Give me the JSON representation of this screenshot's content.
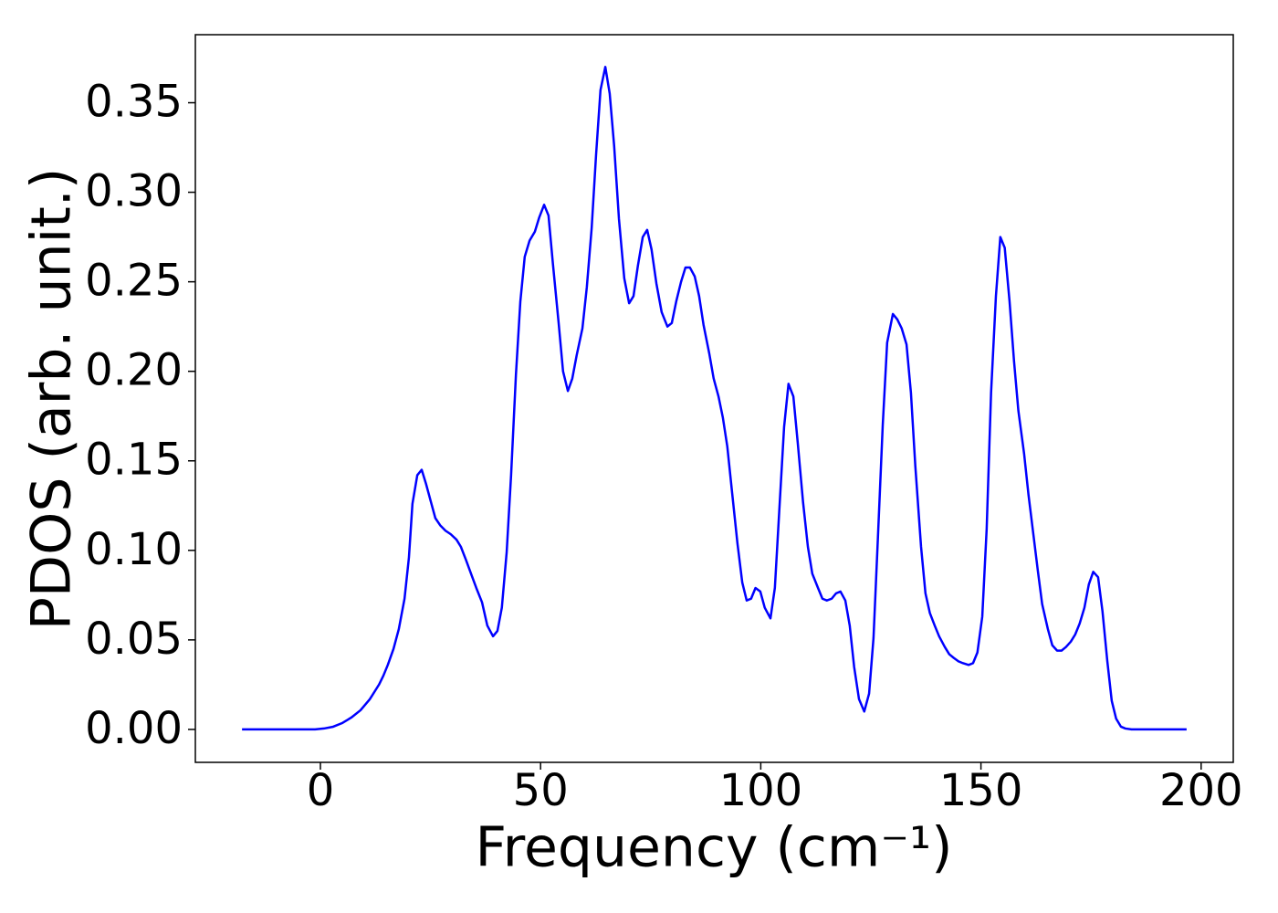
{
  "chart_data": {
    "type": "line",
    "xlabel": "Frequency (cm⁻¹)",
    "ylabel": "PDOS (arb. unit.)",
    "color": "#0000ff",
    "xlim": [
      -28.4,
      207.3
    ],
    "ylim": [
      -0.0184,
      0.388
    ],
    "xticks": [
      0,
      50,
      100,
      150,
      200
    ],
    "yticks": [
      {
        "value": 0,
        "label": "0.00"
      },
      0.05,
      {
        "value": 0.1,
        "label": "0.10"
      },
      0.15,
      {
        "value": 0.2,
        "label": "0.20"
      },
      0.25,
      {
        "value": 0.3,
        "label": "0.30"
      },
      0.35
    ],
    "x": [
      -17.8,
      -1.2,
      0.8,
      2.9,
      5.0,
      7.0,
      9.1,
      11.2,
      13.3,
      14.3,
      15.3,
      16.6,
      17.8,
      19.1,
      20.1,
      20.9,
      22.0,
      23.0,
      24.0,
      25.1,
      26.1,
      27.2,
      28.4,
      29.6,
      30.9,
      31.9,
      33.0,
      34.2,
      35.4,
      36.7,
      37.9,
      39.2,
      40.2,
      41.2,
      42.3,
      43.3,
      44.4,
      45.4,
      46.4,
      47.5,
      48.7,
      49.7,
      50.8,
      51.8,
      52.8,
      54.1,
      55.1,
      56.2,
      57.2,
      58.2,
      59.5,
      60.5,
      61.6,
      62.6,
      63.6,
      64.7,
      65.7,
      66.7,
      67.8,
      69.0,
      70.1,
      71.1,
      72.1,
      73.2,
      74.2,
      75.2,
      76.3,
      77.5,
      78.8,
      79.8,
      80.8,
      81.9,
      82.9,
      83.9,
      85.0,
      86.0,
      87.0,
      88.3,
      89.3,
      90.4,
      91.4,
      92.4,
      93.5,
      94.7,
      95.8,
      96.8,
      97.8,
      98.8,
      99.9,
      100.9,
      102.2,
      103.2,
      104.2,
      105.3,
      106.3,
      107.4,
      108.4,
      109.6,
      110.7,
      111.7,
      113.0,
      114.0,
      115.0,
      116.1,
      117.1,
      118.1,
      119.2,
      120.2,
      121.2,
      122.3,
      123.5,
      124.6,
      125.6,
      126.6,
      127.7,
      128.7,
      130.0,
      131.0,
      132.0,
      133.1,
      134.1,
      135.1,
      136.4,
      137.4,
      138.4,
      139.5,
      140.5,
      141.8,
      142.8,
      143.8,
      144.9,
      145.9,
      147.2,
      148.2,
      149.2,
      150.3,
      151.3,
      152.3,
      153.4,
      154.4,
      155.4,
      156.5,
      157.5,
      158.5,
      159.8,
      160.8,
      161.9,
      162.9,
      163.9,
      165.2,
      166.2,
      167.3,
      168.3,
      169.3,
      170.4,
      171.4,
      172.4,
      173.5,
      174.5,
      175.5,
      176.6,
      177.6,
      178.7,
      179.7,
      180.7,
      181.8,
      182.8,
      184.2,
      196.7
    ],
    "values": [
      0,
      0,
      0.0005,
      0.0015,
      0.0036,
      0.0066,
      0.0107,
      0.0168,
      0.025,
      0.03,
      0.036,
      0.045,
      0.056,
      0.073,
      0.096,
      0.126,
      0.142,
      0.145,
      0.137,
      0.127,
      0.118,
      0.114,
      0.111,
      0.109,
      0.106,
      0.102,
      0.095,
      0.087,
      0.079,
      0.071,
      0.058,
      0.052,
      0.055,
      0.068,
      0.099,
      0.142,
      0.198,
      0.239,
      0.264,
      0.273,
      0.278,
      0.286,
      0.293,
      0.287,
      0.26,
      0.227,
      0.2,
      0.189,
      0.196,
      0.209,
      0.224,
      0.247,
      0.28,
      0.321,
      0.357,
      0.37,
      0.355,
      0.326,
      0.285,
      0.252,
      0.238,
      0.242,
      0.259,
      0.275,
      0.279,
      0.268,
      0.249,
      0.233,
      0.225,
      0.227,
      0.239,
      0.25,
      0.258,
      0.258,
      0.253,
      0.242,
      0.226,
      0.21,
      0.196,
      0.186,
      0.174,
      0.158,
      0.132,
      0.104,
      0.082,
      0.072,
      0.073,
      0.079,
      0.077,
      0.068,
      0.062,
      0.079,
      0.122,
      0.169,
      0.193,
      0.186,
      0.16,
      0.127,
      0.102,
      0.087,
      0.079,
      0.073,
      0.072,
      0.073,
      0.076,
      0.077,
      0.072,
      0.058,
      0.035,
      0.017,
      0.01,
      0.02,
      0.051,
      0.107,
      0.17,
      0.216,
      0.232,
      0.229,
      0.224,
      0.215,
      0.188,
      0.147,
      0.102,
      0.076,
      0.065,
      0.058,
      0.052,
      0.046,
      0.042,
      0.04,
      0.038,
      0.037,
      0.036,
      0.037,
      0.043,
      0.063,
      0.112,
      0.188,
      0.242,
      0.275,
      0.269,
      0.239,
      0.206,
      0.178,
      0.154,
      0.131,
      0.109,
      0.089,
      0.07,
      0.056,
      0.047,
      0.044,
      0.044,
      0.046,
      0.049,
      0.053,
      0.059,
      0.068,
      0.081,
      0.088,
      0.085,
      0.066,
      0.038,
      0.016,
      0.006,
      0.0015,
      0.0005,
      0,
      0
    ]
  }
}
